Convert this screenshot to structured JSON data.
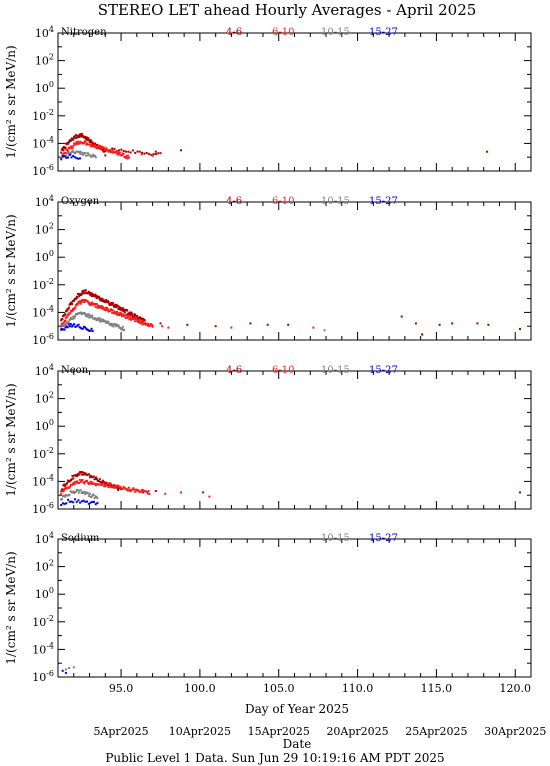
{
  "title": "STEREO LET ahead Hourly Averages - April 2025",
  "ylabel": "1/(cm² s sr MeV/n)",
  "xlabel": "Day of Year 2025",
  "xlabel2": "Date",
  "footer": "Public Level 1 Data. Sun Jun 29 10:19:16 AM PDT 2025",
  "x_ticks": [
    "95.0",
    "100.0",
    "105.0",
    "110.0",
    "115.0",
    "120.0"
  ],
  "date_ticks": [
    "5Apr2025",
    "10Apr2025",
    "15Apr2025",
    "20Apr2025",
    "25Apr2025",
    "30Apr2025"
  ],
  "y_ticks": [
    "10^4",
    "10^2",
    "10^0",
    "10^-2",
    "10^-4",
    "10^-6"
  ],
  "colors": {
    "4-6": "#aa0000",
    "6-10": "#ff1a1a",
    "10-15": "#808080",
    "15-27": "#0000dd"
  },
  "chart_data": [
    {
      "type": "scatter",
      "panel": "Nitrogen",
      "xlim": [
        91,
        121
      ],
      "ylim_exp": [
        -6,
        4
      ],
      "yscale": "log",
      "legend": [
        "4-6",
        "6-10",
        "10-15",
        "15-27"
      ],
      "series": [
        {
          "name": "4-6",
          "clusters": [
            {
              "x0": 91.2,
              "x1": 94.0,
              "peak_x": 92.5,
              "peak_e": -3.4,
              "base_e": -4.6,
              "n": 80
            },
            {
              "x0": 94.0,
              "x1": 97.5,
              "peak_x": 94.0,
              "peak_e": -4.4,
              "base_e": -4.8,
              "n": 25
            }
          ],
          "isolated": [
            [
              97.2,
              -4.6
            ],
            [
              98.8,
              -4.5
            ],
            [
              118.2,
              -4.6
            ]
          ]
        },
        {
          "name": "6-10",
          "clusters": [
            {
              "x0": 91.2,
              "x1": 95.5,
              "peak_x": 92.6,
              "peak_e": -3.9,
              "base_e": -5.0,
              "n": 90
            }
          ],
          "isolated": [
            [
              96.3,
              -4.8
            ],
            [
              97.0,
              -4.9
            ]
          ]
        },
        {
          "name": "10-15",
          "clusters": [
            {
              "x0": 91.2,
              "x1": 93.4,
              "peak_x": 92.3,
              "peak_e": -4.6,
              "base_e": -5.0,
              "n": 40
            }
          ],
          "isolated": []
        },
        {
          "name": "15-27",
          "clusters": [
            {
              "x0": 91.2,
              "x1": 92.4,
              "peak_x": 91.7,
              "peak_e": -4.9,
              "base_e": -5.1,
              "n": 12
            }
          ],
          "isolated": []
        }
      ]
    },
    {
      "type": "scatter",
      "panel": "Oxygen",
      "xlim": [
        91,
        121
      ],
      "ylim_exp": [
        -6,
        4
      ],
      "yscale": "log",
      "legend": [
        "4-6",
        "6-10",
        "10-15",
        "15-27"
      ],
      "series": [
        {
          "name": "4-6",
          "clusters": [
            {
              "x0": 91.2,
              "x1": 96.5,
              "peak_x": 92.8,
              "peak_e": -2.5,
              "base_e": -4.6,
              "n": 140
            }
          ],
          "isolated": [
            [
              97.5,
              -4.8
            ],
            [
              99.2,
              -4.9
            ],
            [
              101.0,
              -5.0
            ],
            [
              103.2,
              -4.8
            ],
            [
              104.3,
              -4.9
            ],
            [
              105.6,
              -4.9
            ],
            [
              112.8,
              -4.3
            ],
            [
              113.7,
              -4.8
            ],
            [
              115.2,
              -4.9
            ],
            [
              116.0,
              -4.8
            ],
            [
              117.6,
              -4.8
            ],
            [
              118.3,
              -4.9
            ],
            [
              120.3,
              -5.2
            ]
          ]
        },
        {
          "name": "6-10",
          "clusters": [
            {
              "x0": 91.2,
              "x1": 97.0,
              "peak_x": 92.7,
              "peak_e": -3.2,
              "base_e": -5.0,
              "n": 150
            }
          ],
          "isolated": [
            [
              97.6,
              -5.0
            ],
            [
              98.0,
              -5.1
            ],
            [
              102.0,
              -5.1
            ],
            [
              107.2,
              -5.1
            ]
          ]
        },
        {
          "name": "10-15",
          "clusters": [
            {
              "x0": 91.2,
              "x1": 95.2,
              "peak_x": 92.6,
              "peak_e": -4.1,
              "base_e": -5.2,
              "n": 90
            }
          ],
          "isolated": [
            [
              107.9,
              -5.3
            ]
          ]
        },
        {
          "name": "15-27",
          "clusters": [
            {
              "x0": 91.2,
              "x1": 93.2,
              "peak_x": 92.0,
              "peak_e": -4.9,
              "base_e": -5.3,
              "n": 30
            }
          ],
          "isolated": [
            [
              114.1,
              -5.6
            ]
          ]
        }
      ]
    },
    {
      "type": "scatter",
      "panel": "Neon",
      "xlim": [
        91,
        121
      ],
      "ylim_exp": [
        -6,
        4
      ],
      "yscale": "log",
      "legend": [
        "4-6",
        "6-10",
        "10-15",
        "15-27"
      ],
      "series": [
        {
          "name": "4-6",
          "clusters": [
            {
              "x0": 91.2,
              "x1": 95.0,
              "peak_x": 92.6,
              "peak_e": -3.4,
              "base_e": -4.6,
              "n": 80
            }
          ],
          "isolated": [
            [
              95.6,
              -4.7
            ],
            [
              96.4,
              -4.8
            ],
            [
              97.2,
              -4.7
            ],
            [
              100.2,
              -4.8
            ],
            [
              120.3,
              -4.8
            ]
          ]
        },
        {
          "name": "6-10",
          "clusters": [
            {
              "x0": 91.2,
              "x1": 96.8,
              "peak_x": 92.5,
              "peak_e": -4.0,
              "base_e": -4.8,
              "n": 100
            }
          ],
          "isolated": [
            [
              97.8,
              -4.9
            ],
            [
              98.8,
              -4.8
            ],
            [
              100.6,
              -5.1
            ]
          ]
        },
        {
          "name": "10-15",
          "clusters": [
            {
              "x0": 91.2,
              "x1": 93.5,
              "peak_x": 92.4,
              "peak_e": -4.7,
              "base_e": -5.2,
              "n": 40
            }
          ],
          "isolated": []
        },
        {
          "name": "15-27",
          "clusters": [
            {
              "x0": 91.2,
              "x1": 93.5,
              "peak_x": 92.0,
              "peak_e": -5.4,
              "base_e": -5.6,
              "n": 22
            }
          ],
          "isolated": []
        }
      ]
    },
    {
      "type": "scatter",
      "panel": "Sodium",
      "xlim": [
        91,
        121
      ],
      "ylim_exp": [
        -6,
        4
      ],
      "yscale": "log",
      "legend": [
        "10-15",
        "15-27"
      ],
      "series": [
        {
          "name": "10-15",
          "clusters": [],
          "isolated": [
            [
              91.5,
              -5.45
            ],
            [
              91.7,
              -5.35
            ],
            [
              92.0,
              -5.3
            ]
          ]
        },
        {
          "name": "15-27",
          "clusters": [],
          "isolated": [
            [
              91.3,
              -5.55
            ],
            [
              91.5,
              -5.7
            ]
          ]
        }
      ]
    }
  ]
}
